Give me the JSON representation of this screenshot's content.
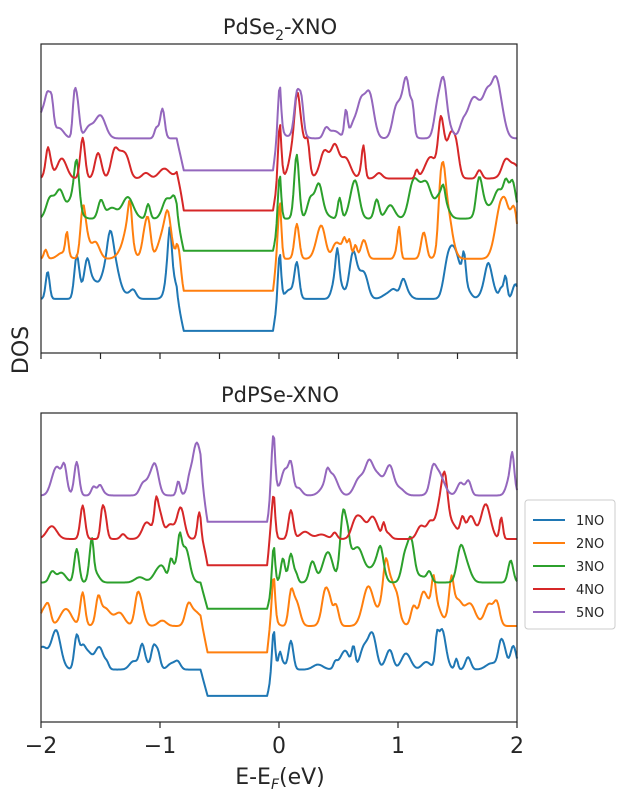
{
  "figure": {
    "ylabel": "DOS",
    "xlabel_main": "E-E",
    "xlabel_sub": "F",
    "xlabel_tail": "(eV)"
  },
  "legend": {
    "entries": [
      {
        "label": "1NO",
        "color": "#1f77b4"
      },
      {
        "label": "2NO",
        "color": "#ff7f0e"
      },
      {
        "label": "3NO",
        "color": "#2ca02c"
      },
      {
        "label": "4NO",
        "color": "#d62728"
      },
      {
        "label": "5NO",
        "color": "#9467bd"
      }
    ],
    "placement": "right, between panels"
  },
  "chart_data": [
    {
      "type": "line",
      "title_main": "PdSe",
      "title_sub": "2",
      "title_tail": "-XNO",
      "xlabel": "",
      "ylabel": "DOS",
      "xlim": [
        -2,
        2
      ],
      "xticks": [
        -2,
        -1.5,
        -1,
        -0.5,
        0,
        0.5,
        1,
        1.5,
        2
      ],
      "xticklabels_shown": false,
      "y_ticklabels_shown": false,
      "offset_step": 1,
      "gap": [
        -0.8,
        -0.05
      ],
      "series": [
        {
          "name": "1NO",
          "color": "#1f77b4",
          "offset": 0,
          "base": 0.35,
          "level": 1.45
        },
        {
          "name": "2NO",
          "color": "#ff7f0e",
          "offset": 1,
          "base": 0.35,
          "level": 1.45
        },
        {
          "name": "3NO",
          "color": "#2ca02c",
          "offset": 2,
          "base": 0.35,
          "level": 1.45
        },
        {
          "name": "4NO",
          "color": "#d62728",
          "offset": 3,
          "base": 0.35,
          "level": 1.45
        },
        {
          "name": "5NO",
          "color": "#9467bd",
          "offset": 4,
          "base": 0.35,
          "level": 1.45
        }
      ],
      "ylim": [
        -0.2,
        7.5
      ]
    },
    {
      "type": "line",
      "title": "PdPSe-XNO",
      "xlabel": "E-EF(eV)",
      "ylabel": "",
      "xlim": [
        -2,
        2
      ],
      "xticks": [
        -2,
        -1,
        0,
        1,
        2
      ],
      "xticklabels": [
        "−2",
        "−1",
        "0",
        "1",
        "2"
      ],
      "y_ticklabels_shown": false,
      "offset_step": 1,
      "gap": [
        -0.6,
        -0.1
      ],
      "series": [
        {
          "name": "1NO",
          "color": "#1f77b4",
          "offset": 0,
          "base": 0.3,
          "level": 1.1
        },
        {
          "name": "2NO",
          "color": "#ff7f0e",
          "offset": 1,
          "base": 0.3,
          "level": 1.1
        },
        {
          "name": "3NO",
          "color": "#2ca02c",
          "offset": 2,
          "base": 0.3,
          "level": 1.1
        },
        {
          "name": "4NO",
          "color": "#d62728",
          "offset": 3,
          "base": 0.3,
          "level": 1.1
        },
        {
          "name": "5NO",
          "color": "#9467bd",
          "offset": 4,
          "base": 0.3,
          "level": 1.1
        }
      ],
      "ylim": [
        -0.3,
        6.8
      ]
    }
  ]
}
